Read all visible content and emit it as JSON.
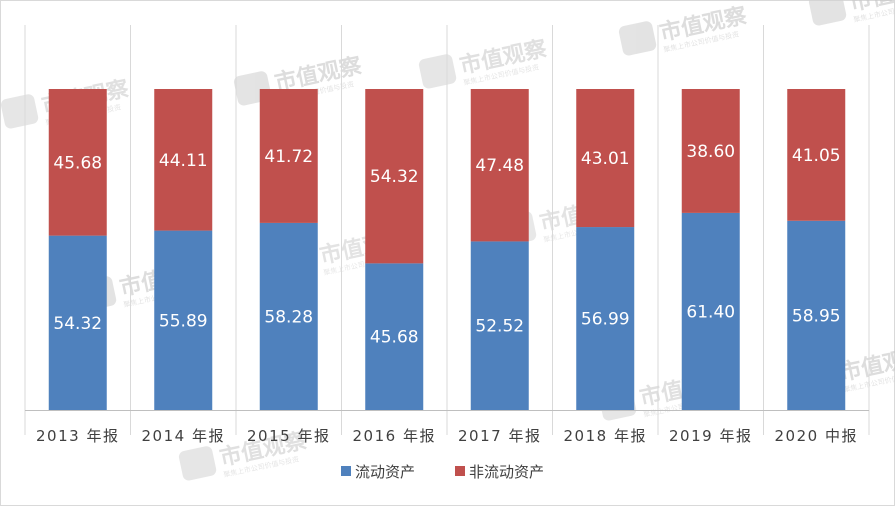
{
  "chart_data": {
    "type": "bar",
    "stacked": true,
    "categories": [
      "2013 年报",
      "2014 年报",
      "2015 年报",
      "2016 年报",
      "2017 年报",
      "2018 年报",
      "2019 年报",
      "2020 中报"
    ],
    "series": [
      {
        "name": "流动资产",
        "values": [
          54.32,
          55.89,
          58.28,
          45.68,
          52.52,
          56.99,
          61.4,
          58.95
        ],
        "labels": [
          "54.32",
          "55.89",
          "58.28",
          "45.68",
          "52.52",
          "56.99",
          "61.40",
          "58.95"
        ],
        "color": "#4f81bd"
      },
      {
        "name": "非流动资产",
        "values": [
          45.68,
          44.11,
          41.72,
          54.32,
          47.48,
          43.01,
          38.6,
          41.05
        ],
        "labels": [
          "45.68",
          "44.11",
          "41.72",
          "54.32",
          "47.48",
          "43.01",
          "38.60",
          "41.05"
        ],
        "color": "#c0504d"
      }
    ],
    "ylim": [
      0,
      100
    ],
    "grid": "vertical separators",
    "legend_position": "bottom"
  },
  "watermark": {
    "text": "市值观察",
    "subtext": "聚焦上市公司价值与投资"
  },
  "colors": {
    "gridline": "#d9d9d9",
    "axis": "#bfbfbf",
    "text": "#404040"
  }
}
